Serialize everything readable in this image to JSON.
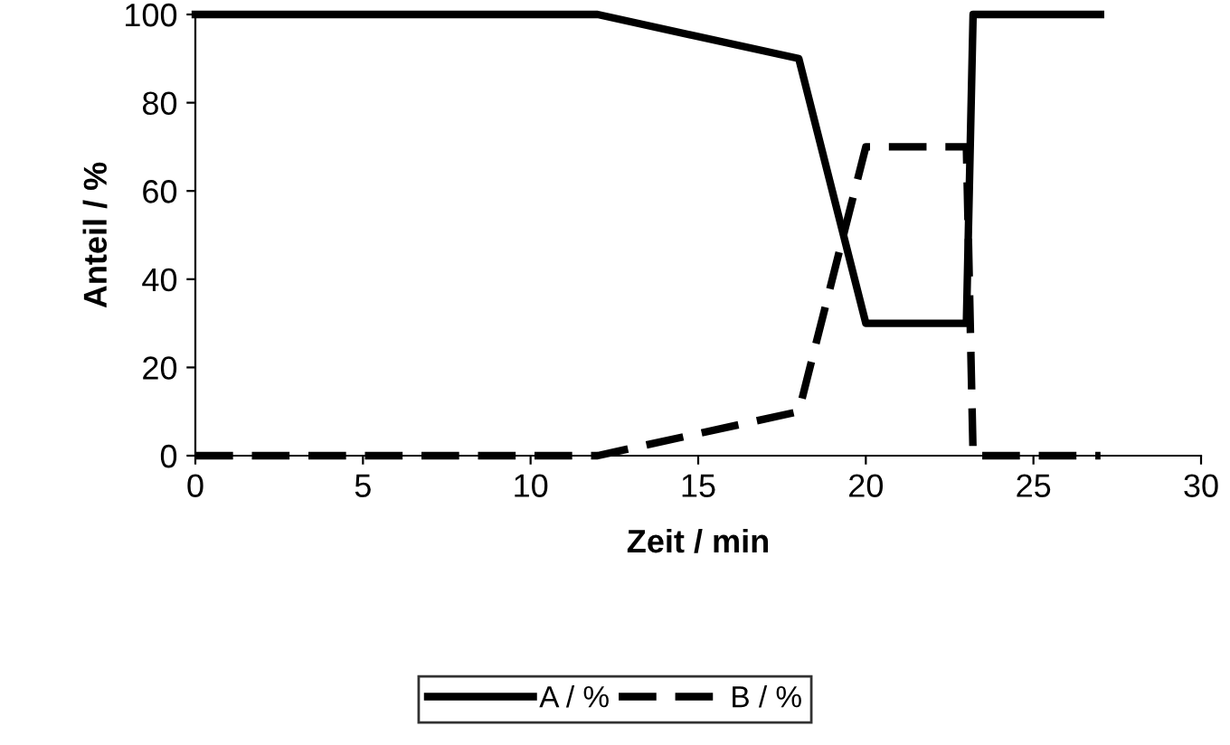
{
  "chart_data": {
    "type": "line",
    "xlabel": "Zeit / min",
    "ylabel": "Anteil / %",
    "xlim": [
      0,
      30
    ],
    "xticks": [
      0,
      5,
      10,
      15,
      20,
      25,
      30
    ],
    "ylim": [
      0,
      100
    ],
    "yticks": [
      0,
      20,
      40,
      60,
      80,
      100
    ],
    "grid": false,
    "legend": "bottom",
    "marker": "none",
    "series": [
      {
        "name": "A / %",
        "color": "#000000",
        "line_style": "solid",
        "x": [
          0,
          12,
          18,
          20,
          23,
          23.2,
          27
        ],
        "values": [
          100,
          100,
          90,
          30,
          30,
          100,
          100
        ]
      },
      {
        "name": "B / %",
        "color": "#000000",
        "line_style": "dashed",
        "x": [
          0,
          12,
          18,
          20,
          23,
          23.2,
          27
        ],
        "values": [
          0,
          0,
          10,
          70,
          70,
          0,
          0
        ]
      }
    ]
  }
}
